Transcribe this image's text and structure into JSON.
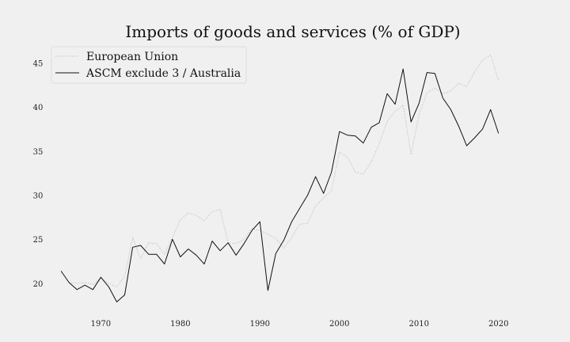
{
  "chart_data": {
    "type": "line",
    "title": "Imports of goods and services (% of GDP)",
    "xlabel": "",
    "ylabel": "",
    "xlim": [
      1962,
      2026
    ],
    "ylim": [
      16.5,
      47
    ],
    "xticks": [
      1970,
      1980,
      1990,
      2000,
      2010,
      2020
    ],
    "yticks": [
      20,
      25,
      30,
      35,
      40,
      45
    ],
    "grid": false,
    "legend_position": "top-left",
    "x": [
      1965,
      1966,
      1967,
      1968,
      1969,
      1970,
      1971,
      1972,
      1973,
      1974,
      1975,
      1976,
      1977,
      1978,
      1979,
      1980,
      1981,
      1982,
      1983,
      1984,
      1985,
      1986,
      1987,
      1988,
      1989,
      1990,
      1991,
      1992,
      1993,
      1994,
      1995,
      1996,
      1997,
      1998,
      1999,
      2000,
      2001,
      2002,
      2003,
      2004,
      2005,
      2006,
      2007,
      2008,
      2009,
      2010,
      2011,
      2012,
      2013,
      2014,
      2015,
      2016,
      2017,
      2018,
      2019,
      2020
    ],
    "series": [
      {
        "name": "European Union",
        "color": "#bbbbbb",
        "dash": "dotted",
        "values": [
          null,
          20.1,
          20.0,
          20.1,
          19.9,
          20.6,
          20.0,
          19.6,
          20.8,
          25.2,
          22.8,
          24.6,
          24.5,
          23.3,
          25.2,
          27.2,
          28.0,
          27.7,
          27.1,
          28.1,
          28.4,
          24.6,
          24.5,
          25.0,
          26.2,
          26.0,
          25.6,
          25.1,
          24.0,
          25.2,
          26.7,
          26.8,
          28.8,
          29.7,
          30.5,
          34.9,
          34.3,
          32.6,
          32.4,
          33.8,
          35.8,
          38.4,
          39.5,
          40.2,
          34.6,
          39.1,
          41.6,
          42.1,
          41.5,
          41.8,
          42.7,
          42.3,
          44.0,
          45.3,
          45.9,
          43.0
        ]
      },
      {
        "name": "ASCM exclude 3 / Australia",
        "color": "#111111",
        "dash": "solid",
        "values": [
          21.4,
          20.1,
          19.3,
          19.8,
          19.3,
          20.7,
          19.6,
          17.9,
          18.7,
          24.1,
          24.3,
          23.3,
          23.3,
          22.2,
          25.0,
          23.0,
          23.9,
          23.2,
          22.2,
          24.8,
          23.7,
          24.6,
          23.2,
          24.5,
          26.0,
          27.0,
          19.2,
          23.4,
          24.9,
          27.0,
          28.5,
          30.0,
          32.1,
          30.2,
          32.6,
          37.2,
          36.8,
          36.7,
          35.9,
          37.7,
          38.2,
          41.5,
          40.3,
          44.3,
          38.3,
          40.4,
          43.9,
          43.8,
          41.0,
          39.7,
          37.8,
          35.6,
          36.5,
          37.5,
          39.7,
          37.0
        ]
      }
    ]
  }
}
